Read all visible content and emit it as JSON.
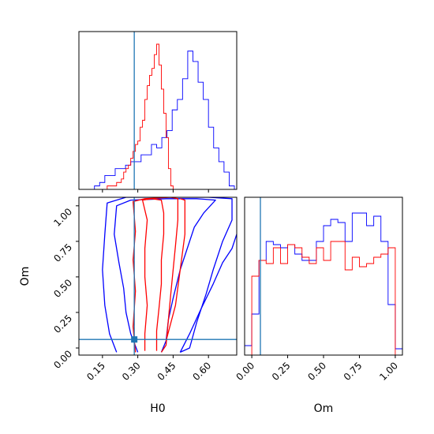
{
  "figure": {
    "type": "corner-plot"
  },
  "chart_data": [
    {
      "id": "h0_marginal",
      "type": "histogram",
      "xlim": [
        0.05,
        0.72
      ],
      "x_ticks": [
        0.15,
        0.3,
        0.45,
        0.6
      ],
      "truth_line": 0.285,
      "truth_color": "#1f77b4",
      "series": [
        {
          "color": "#0000ff",
          "bin_edges": [
            0.05,
            0.072,
            0.094,
            0.116,
            0.138,
            0.16,
            0.182,
            0.204,
            0.226,
            0.248,
            0.27,
            0.292,
            0.314,
            0.336,
            0.358,
            0.38,
            0.402,
            0.424,
            0.446,
            0.468,
            0.49,
            0.512,
            0.534,
            0.556,
            0.578,
            0.6,
            0.622,
            0.644,
            0.666,
            0.688,
            0.71
          ],
          "counts": [
            0,
            0,
            0,
            1,
            2,
            4,
            4,
            6,
            6,
            7,
            8,
            8,
            10,
            10,
            13,
            12,
            15,
            17,
            23,
            26,
            32,
            40,
            37,
            31,
            26,
            18,
            12,
            8,
            5,
            1
          ]
        },
        {
          "color": "#ff0000",
          "bin_edges": [
            0.16,
            0.17,
            0.18,
            0.19,
            0.2,
            0.21,
            0.22,
            0.23,
            0.24,
            0.25,
            0.26,
            0.27,
            0.28,
            0.29,
            0.3,
            0.31,
            0.32,
            0.33,
            0.34,
            0.35,
            0.36,
            0.37,
            0.38,
            0.39,
            0.4,
            0.41,
            0.42,
            0.43,
            0.44,
            0.45
          ],
          "counts": [
            0,
            1,
            1,
            1,
            1,
            2,
            2,
            3,
            5,
            6,
            7,
            9,
            11,
            13,
            14,
            18,
            20,
            26,
            30,
            33,
            35,
            39,
            42,
            36,
            29,
            22,
            15,
            6,
            1
          ]
        }
      ]
    },
    {
      "id": "om_marginal",
      "type": "histogram",
      "xlim": [
        -0.05,
        1.05
      ],
      "x_ticks": [
        0.0,
        0.25,
        0.5,
        0.75,
        1.0
      ],
      "x_tick_labels": [
        "0.00",
        "0.25",
        "0.50",
        "0.75",
        "1.00"
      ],
      "xlabel": "Om",
      "truth_line": 0.06,
      "truth_color": "#1f77b4",
      "series": [
        {
          "color": "#0000ff",
          "bin_edges": [
            -0.05,
            0.0,
            0.05,
            0.1,
            0.15,
            0.2,
            0.25,
            0.3,
            0.35,
            0.4,
            0.45,
            0.5,
            0.55,
            0.6,
            0.65,
            0.7,
            0.75,
            0.8,
            0.85,
            0.9,
            0.95,
            1.0,
            1.05
          ],
          "counts": [
            3,
            13,
            30,
            36,
            35,
            34,
            35,
            32,
            30,
            30,
            36,
            41,
            43,
            42,
            36,
            45,
            45,
            41,
            44,
            36,
            16,
            2
          ]
        },
        {
          "color": "#ff0000",
          "bin_edges": [
            0.0,
            0.05,
            0.1,
            0.15,
            0.2,
            0.25,
            0.3,
            0.35,
            0.4,
            0.45,
            0.5,
            0.55,
            0.6,
            0.65,
            0.7,
            0.75,
            0.8,
            0.85,
            0.9,
            0.95,
            1.0
          ],
          "counts": [
            25,
            30,
            29,
            34,
            29,
            35,
            34,
            31,
            29,
            34,
            30,
            36,
            36,
            27,
            31,
            28,
            29,
            31,
            32,
            34
          ]
        }
      ]
    },
    {
      "id": "h0_om_joint",
      "type": "contour",
      "xlim": [
        0.05,
        0.72
      ],
      "ylim": [
        -0.05,
        1.06
      ],
      "x_ticks": [
        0.15,
        0.3,
        0.45,
        0.6
      ],
      "x_tick_labels": [
        "0.15",
        "0.30",
        "0.45",
        "0.60"
      ],
      "y_ticks": [
        0.0,
        0.25,
        0.5,
        0.75,
        1.0
      ],
      "y_tick_labels": [
        "0.00",
        "0.25",
        "0.50",
        "0.75",
        "1.00"
      ],
      "xlabel": "H0",
      "ylabel": "Om",
      "truth_point": [
        0.285,
        0.06
      ],
      "truth_color": "#1f77b4",
      "contours": [
        {
          "color": "#0000ff",
          "path": [
            [
              0.3,
              -0.03
            ],
            [
              0.27,
              0.1
            ],
            [
              0.25,
              0.25
            ],
            [
              0.24,
              0.42
            ],
            [
              0.22,
              0.6
            ],
            [
              0.2,
              0.8
            ],
            [
              0.21,
              1.0
            ],
            [
              0.27,
              1.04
            ],
            [
              0.42,
              1.05
            ],
            [
              0.55,
              1.05
            ],
            [
              0.63,
              1.04
            ],
            [
              0.58,
              0.95
            ],
            [
              0.54,
              0.85
            ],
            [
              0.51,
              0.7
            ],
            [
              0.48,
              0.55
            ],
            [
              0.45,
              0.35
            ],
            [
              0.43,
              0.2
            ],
            [
              0.42,
              0.05
            ],
            [
              0.4,
              -0.03
            ]
          ]
        },
        {
          "color": "#0000ff",
          "path": [
            [
              0.21,
              -0.03
            ],
            [
              0.18,
              0.1
            ],
            [
              0.16,
              0.3
            ],
            [
              0.15,
              0.55
            ],
            [
              0.16,
              0.8
            ],
            [
              0.17,
              1.02
            ],
            [
              0.25,
              1.06
            ],
            [
              0.6,
              1.06
            ],
            [
              0.7,
              1.05
            ],
            [
              0.7,
              0.9
            ],
            [
              0.66,
              0.75
            ],
            [
              0.62,
              0.55
            ],
            [
              0.59,
              0.38
            ],
            [
              0.55,
              0.18
            ],
            [
              0.52,
              0.0
            ],
            [
              0.48,
              -0.03
            ]
          ]
        },
        {
          "color": "#0000ff",
          "path": [
            [
              0.48,
              -0.03
            ],
            [
              0.52,
              0.1
            ],
            [
              0.57,
              0.28
            ],
            [
              0.62,
              0.45
            ],
            [
              0.66,
              0.6
            ],
            [
              0.7,
              0.7
            ],
            [
              0.72,
              0.8
            ]
          ]
        },
        {
          "color": "#ff0000",
          "path": [
            [
              0.33,
              -0.02
            ],
            [
              0.33,
              0.1
            ],
            [
              0.34,
              0.3
            ],
            [
              0.33,
              0.5
            ],
            [
              0.33,
              0.7
            ],
            [
              0.34,
              0.9
            ],
            [
              0.32,
              1.04
            ],
            [
              0.36,
              1.05
            ],
            [
              0.4,
              1.04
            ],
            [
              0.41,
              0.95
            ],
            [
              0.41,
              0.8
            ],
            [
              0.4,
              0.62
            ],
            [
              0.4,
              0.45
            ],
            [
              0.39,
              0.28
            ],
            [
              0.38,
              0.12
            ],
            [
              0.38,
              -0.02
            ]
          ]
        },
        {
          "color": "#ff0000",
          "path": [
            [
              0.29,
              -0.03
            ],
            [
              0.28,
              0.15
            ],
            [
              0.29,
              0.4
            ],
            [
              0.28,
              0.62
            ],
            [
              0.29,
              0.82
            ],
            [
              0.28,
              1.03
            ],
            [
              0.33,
              1.05
            ],
            [
              0.44,
              1.06
            ],
            [
              0.47,
              1.05
            ],
            [
              0.47,
              0.9
            ],
            [
              0.46,
              0.72
            ],
            [
              0.45,
              0.55
            ],
            [
              0.44,
              0.38
            ],
            [
              0.43,
              0.2
            ],
            [
              0.42,
              0.02
            ],
            [
              0.4,
              -0.03
            ]
          ]
        },
        {
          "color": "#ff0000",
          "path": [
            [
              0.42,
              0.05
            ],
            [
              0.46,
              0.3
            ],
            [
              0.48,
              0.55
            ],
            [
              0.5,
              0.8
            ],
            [
              0.5,
              1.04
            ],
            [
              0.48,
              1.05
            ]
          ]
        }
      ]
    }
  ]
}
